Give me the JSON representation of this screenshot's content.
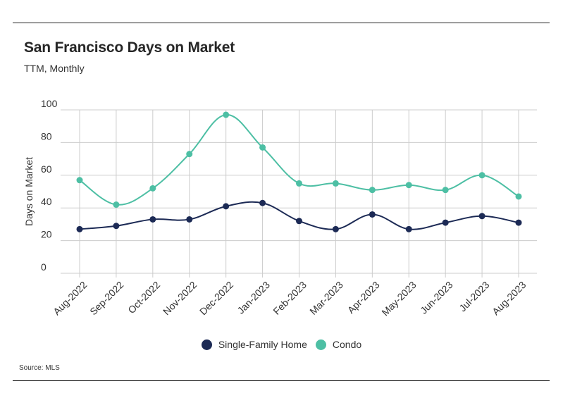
{
  "header": {
    "title": "San Francisco Days on Market",
    "subtitle": "TTM, Monthly"
  },
  "footer": {
    "source": "Source:  MLS"
  },
  "colors": {
    "single_family": "#1c2a55",
    "condo": "#4dbfa4",
    "grid": "#cccccc",
    "text": "#333333"
  },
  "chart_data": {
    "type": "line",
    "title": "San Francisco Days on Market",
    "subtitle": "TTM, Monthly",
    "xlabel": "",
    "ylabel": "Days on Market",
    "ylim": [
      0,
      100
    ],
    "yticks": [
      0,
      20,
      40,
      60,
      80,
      100
    ],
    "grid": true,
    "legend_position": "bottom",
    "categories": [
      "Aug-2022",
      "Sep-2022",
      "Oct-2022",
      "Nov-2022",
      "Dec-2022",
      "Jan-2023",
      "Feb-2023",
      "Mar-2023",
      "Apr-2023",
      "May-2023",
      "Jun-2023",
      "Jul-2023",
      "Aug-2023"
    ],
    "series": [
      {
        "name": "Single-Family Home",
        "color": "#1c2a55",
        "values": [
          27,
          29,
          33,
          33,
          41,
          43,
          32,
          27,
          36,
          27,
          31,
          35,
          31
        ]
      },
      {
        "name": "Condo",
        "color": "#4dbfa4",
        "values": [
          57,
          42,
          52,
          73,
          97,
          77,
          55,
          55,
          51,
          54,
          51,
          60,
          47
        ]
      }
    ]
  }
}
